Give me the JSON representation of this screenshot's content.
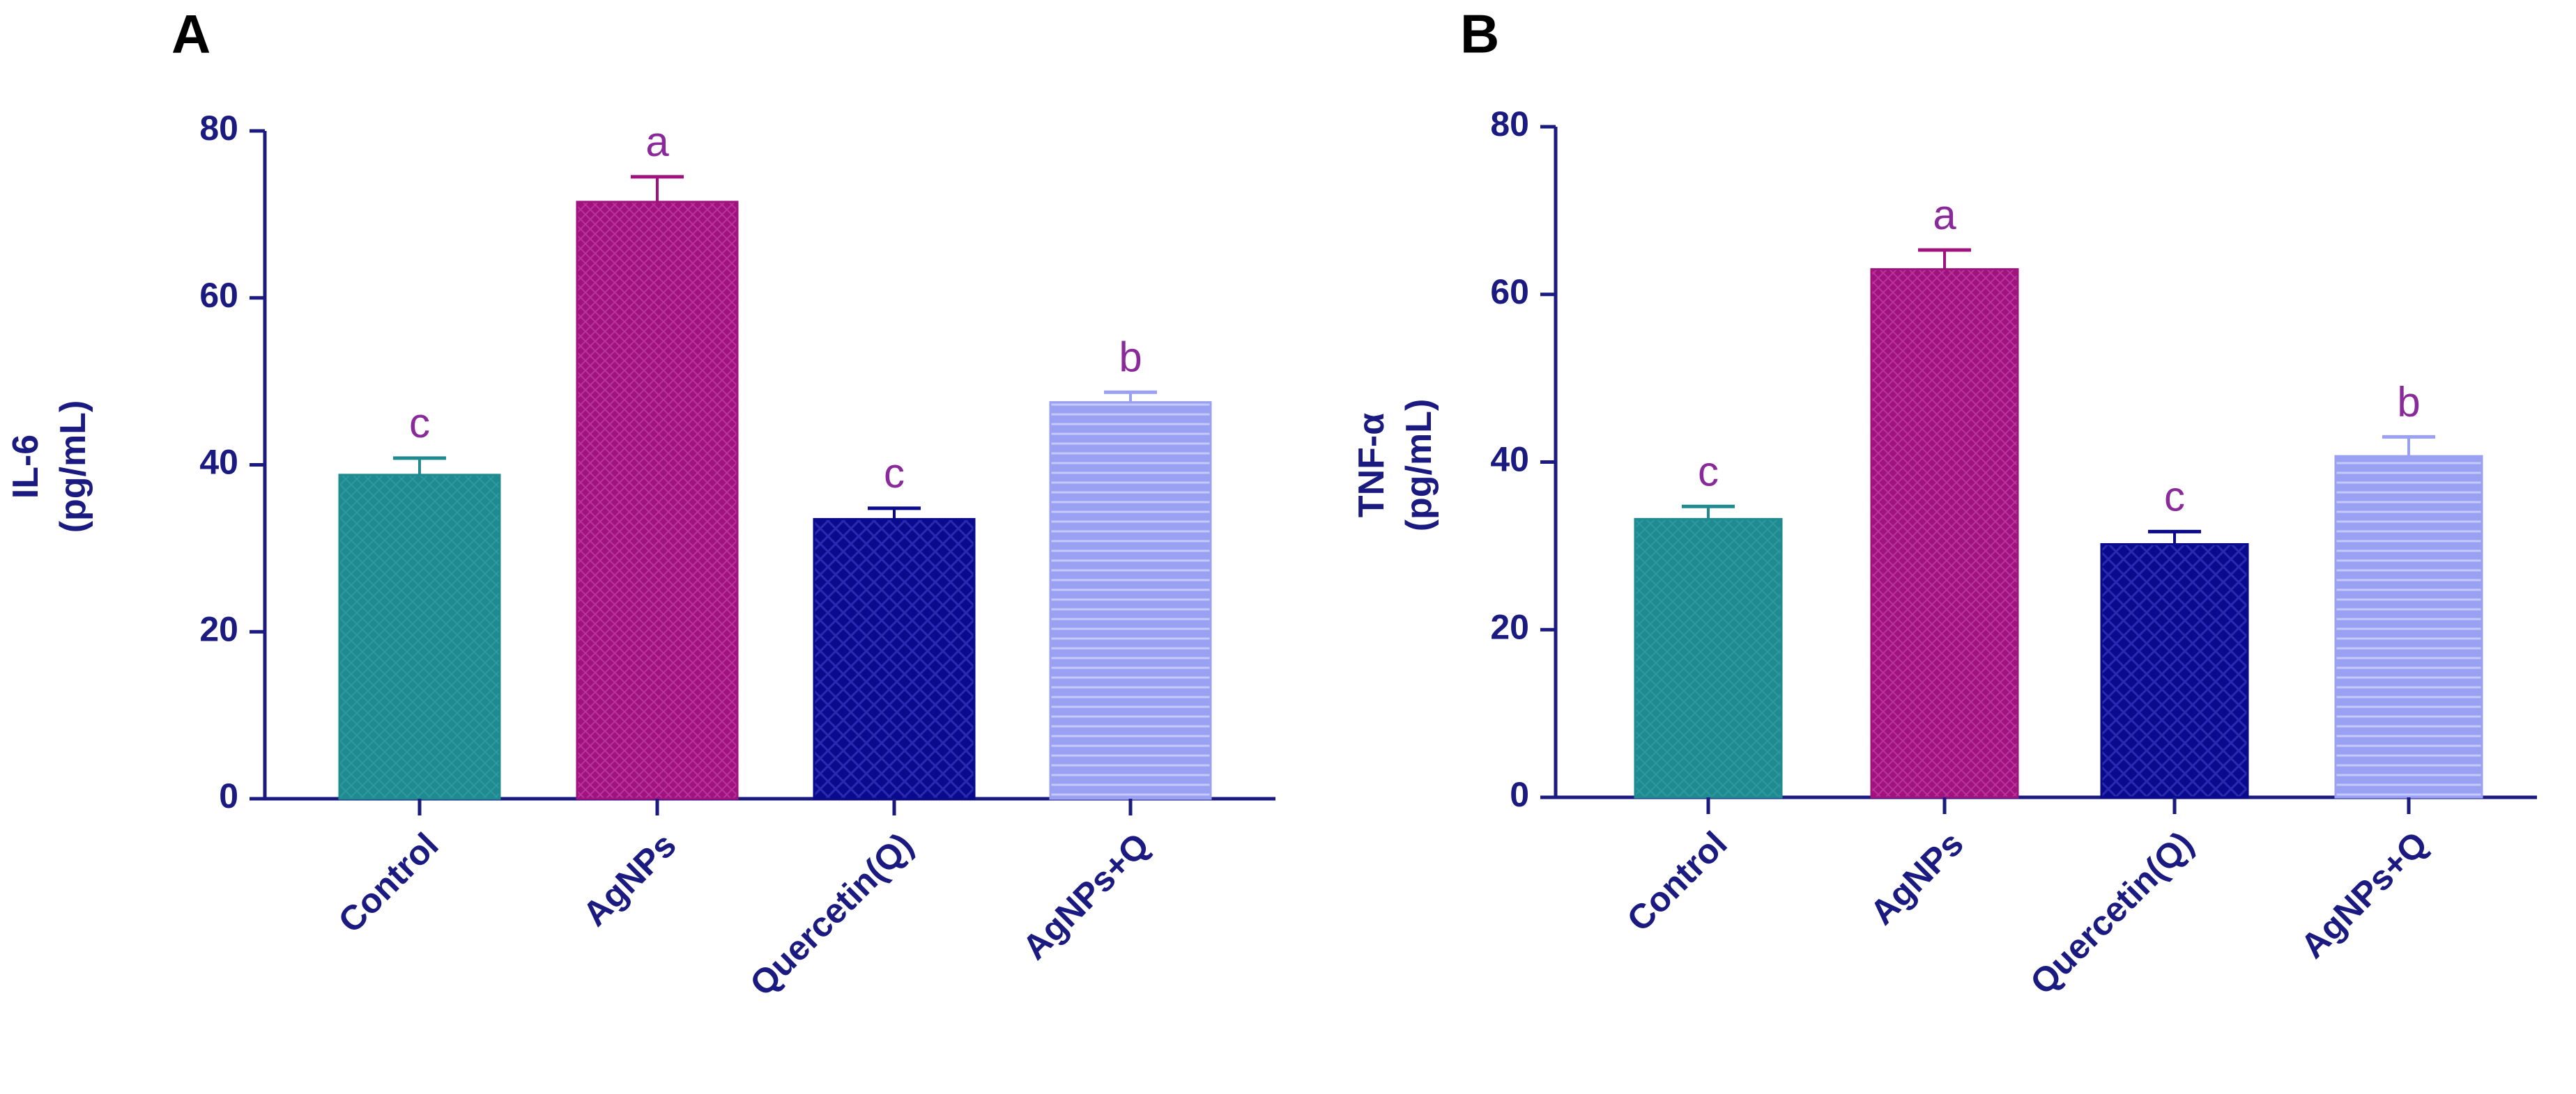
{
  "figure": {
    "colors": {
      "axis": "#1a1a80",
      "text": "#1a1a80",
      "letter": "#8a2a9a",
      "panel_label": "#000000"
    },
    "bar_colors": [
      "#1f8a90",
      "#a0127e",
      "#0a0a8c",
      "#9aa0f2"
    ],
    "panels": [
      {
        "label": "A",
        "ylabel_line1": "IL-6",
        "ylabel_line2": "(pg/mL)",
        "ticks": [
          "0",
          "20",
          "40",
          "60",
          "80"
        ]
      },
      {
        "label": "B",
        "ylabel_line1": "TNF-α",
        "ylabel_line2": "(pg/mL)",
        "ticks": [
          "0",
          "20",
          "40",
          "60",
          "80"
        ]
      }
    ]
  },
  "chart_data": [
    {
      "type": "bar",
      "panel": "A",
      "title": "",
      "xlabel": "",
      "ylabel": "IL-6 (pg/mL)",
      "ylim": [
        0,
        80
      ],
      "yticks": [
        0,
        20,
        40,
        60,
        80
      ],
      "categories": [
        "Control",
        "AgNPs",
        "Quercetin(Q)",
        "AgNPs+Q"
      ],
      "values": [
        38.8,
        71.5,
        33.5,
        47.5
      ],
      "errors": [
        2.0,
        3.0,
        1.3,
        1.2
      ],
      "annotations": [
        "c",
        "a",
        "c",
        "b"
      ],
      "grid": false
    },
    {
      "type": "bar",
      "panel": "B",
      "title": "",
      "xlabel": "",
      "ylabel": "TNF-α (pg/mL)",
      "ylim": [
        0,
        80
      ],
      "yticks": [
        0,
        20,
        40,
        60,
        80
      ],
      "categories": [
        "Control",
        "AgNPs",
        "Quercetin(Q)",
        "AgNPs+Q"
      ],
      "values": [
        33.2,
        63.0,
        30.2,
        40.7
      ],
      "errors": [
        1.5,
        2.3,
        1.5,
        2.3
      ],
      "annotations": [
        "c",
        "a",
        "c",
        "b"
      ],
      "grid": false
    }
  ]
}
